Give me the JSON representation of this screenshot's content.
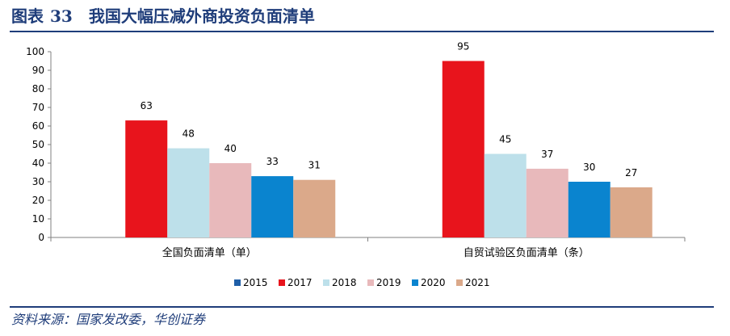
{
  "header": {
    "label": "图表",
    "number": "33",
    "text": "我国大幅压减外商投资负面清单"
  },
  "source": "资料来源：国家发改委，华创证券",
  "colors": {
    "title": "#1f3d7a",
    "2015": "#1f5fa8",
    "2017": "#e8141c",
    "2018": "#bde0ea",
    "2019": "#e8b9bb",
    "2020": "#0a84cf",
    "2021": "#dba98a"
  },
  "chart_data": {
    "type": "bar",
    "title": "我国大幅压减外商投资负面清单",
    "categories": [
      "全国负面清单（单）",
      "自贸试验区负面清单（条）"
    ],
    "series": [
      {
        "name": "2015",
        "values": [
          null,
          null
        ]
      },
      {
        "name": "2017",
        "values": [
          63,
          95
        ]
      },
      {
        "name": "2018",
        "values": [
          48,
          45
        ]
      },
      {
        "name": "2019",
        "values": [
          40,
          37
        ]
      },
      {
        "name": "2020",
        "values": [
          33,
          30
        ]
      },
      {
        "name": "2021",
        "values": [
          31,
          27
        ]
      }
    ],
    "ylim": [
      0,
      100
    ],
    "yticks": [
      0,
      10,
      20,
      30,
      40,
      50,
      60,
      70,
      80,
      90,
      100
    ],
    "xlabel": "",
    "ylabel": "",
    "grid": false,
    "legend": "bottom"
  }
}
